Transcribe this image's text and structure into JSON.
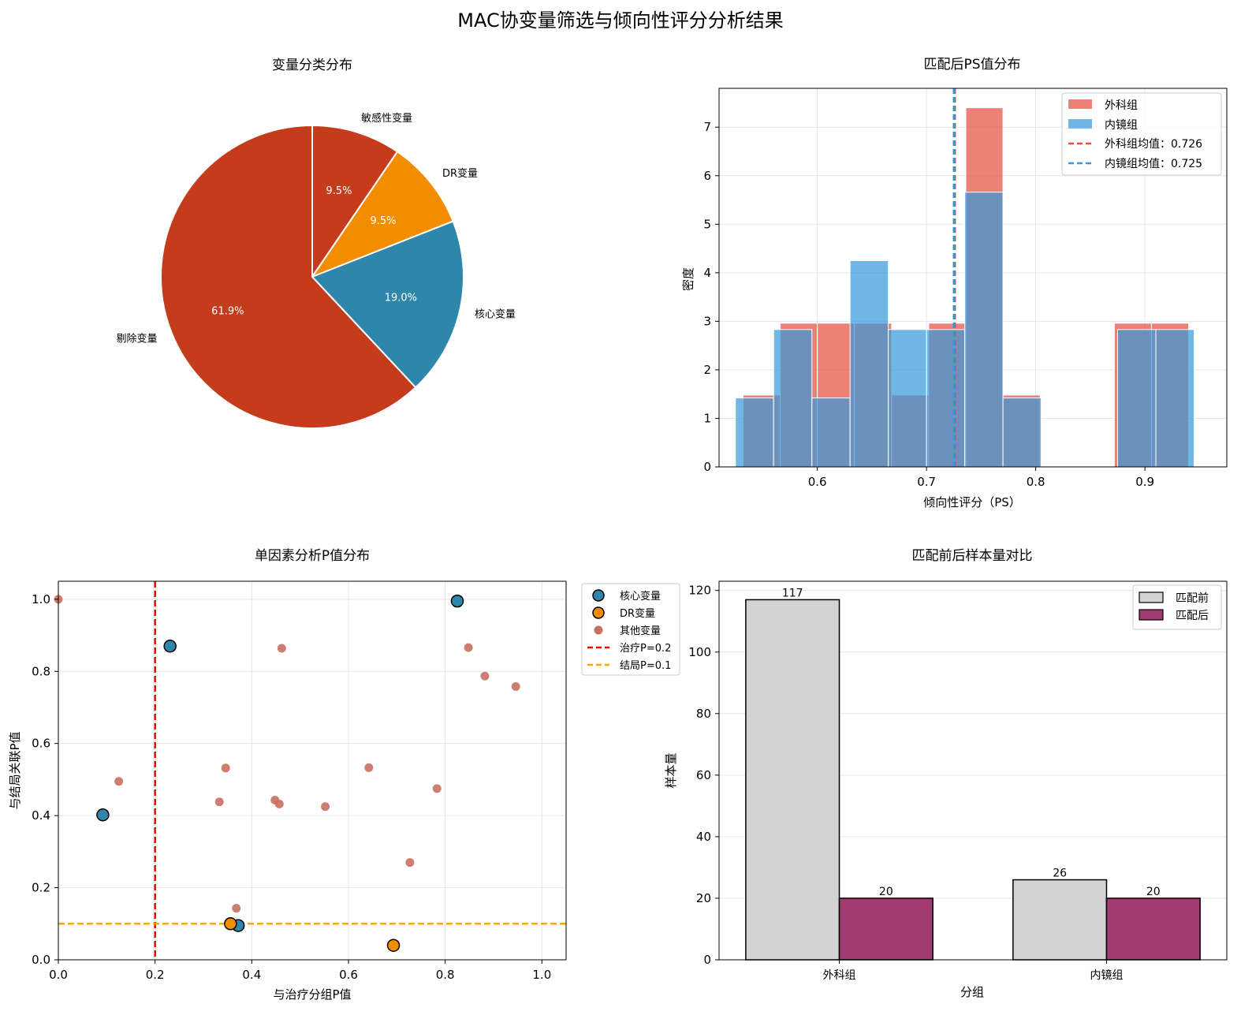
{
  "title": "MAC协变量筛选与倾向性评分分析结果",
  "chart_data": [
    {
      "type": "pie",
      "title": "变量分类分布",
      "labels": [
        "敏感性变量",
        "DR变量",
        "核心变量",
        "剔除变量"
      ],
      "values": [
        9.5,
        9.5,
        19.0,
        61.9
      ],
      "pct_labels": [
        "9.5%",
        "9.5%",
        "19.0%",
        "61.9%"
      ],
      "colors": [
        "#c43c1c",
        "#f28c00",
        "#2e86ab",
        "#c43c1c"
      ]
    },
    {
      "type": "bar",
      "subtype": "histogram",
      "title": "匹配后PS值分布",
      "xlabel": "倾向性评分（PS）",
      "ylabel": "密度",
      "xlim": [
        0.51,
        0.975
      ],
      "ylim": [
        0,
        7.8
      ],
      "xticks": [
        0.6,
        0.7,
        0.8,
        0.9
      ],
      "xtick_labels": [
        "0.6",
        "0.7",
        "0.8",
        "0.9"
      ],
      "yticks": [
        0,
        1,
        2,
        3,
        4,
        5,
        6,
        7
      ],
      "ytick_labels": [
        "0",
        "1",
        "2",
        "3",
        "4",
        "5",
        "6",
        "7"
      ],
      "grid": true,
      "legend_position": "top-right",
      "series": [
        {
          "name": "外科组",
          "color": "#e74c3c",
          "bins": [
            [
              0.532,
              0.566,
              1.48
            ],
            [
              0.566,
              0.6,
              2.96
            ],
            [
              0.6,
              0.634,
              2.96
            ],
            [
              0.634,
              0.668,
              2.96
            ],
            [
              0.668,
              0.702,
              1.48
            ],
            [
              0.702,
              0.736,
              2.96
            ],
            [
              0.736,
              0.77,
              7.4
            ],
            [
              0.77,
              0.804,
              1.48
            ],
            [
              0.804,
              0.838,
              0
            ],
            [
              0.838,
              0.872,
              0
            ],
            [
              0.872,
              0.906,
              2.96
            ],
            [
              0.906,
              0.94,
              2.96
            ]
          ]
        },
        {
          "name": "内镜组",
          "color": "#3498db",
          "bins": [
            [
              0.525,
              0.56,
              1.42
            ],
            [
              0.56,
              0.595,
              2.83
            ],
            [
              0.595,
              0.63,
              1.42
            ],
            [
              0.63,
              0.665,
              4.25
            ],
            [
              0.665,
              0.7,
              2.83
            ],
            [
              0.7,
              0.735,
              2.83
            ],
            [
              0.735,
              0.77,
              5.66
            ],
            [
              0.77,
              0.805,
              1.42
            ],
            [
              0.805,
              0.84,
              0
            ],
            [
              0.84,
              0.875,
              0
            ],
            [
              0.875,
              0.91,
              2.83
            ],
            [
              0.91,
              0.945,
              2.83
            ]
          ]
        }
      ],
      "vlines": [
        {
          "name": "外科组均值：0.726",
          "x": 0.726,
          "color": "#e74c3c"
        },
        {
          "name": "内镜组均值：0.725",
          "x": 0.725,
          "color": "#3498db"
        }
      ]
    },
    {
      "type": "scatter",
      "title": "单因素分析P值分布",
      "xlabel": "与治疗分组P值",
      "ylabel": "与结局关联P值",
      "xlim": [
        0,
        1.05
      ],
      "ylim": [
        0,
        1.05
      ],
      "xticks": [
        0,
        0.2,
        0.4,
        0.6,
        0.8,
        1.0
      ],
      "xtick_labels": [
        "0.0",
        "0.2",
        "0.4",
        "0.6",
        "0.8",
        "1.0"
      ],
      "yticks": [
        0,
        0.2,
        0.4,
        0.6,
        0.8,
        1.0
      ],
      "ytick_labels": [
        "0.0",
        "0.2",
        "0.4",
        "0.6",
        "0.8",
        "1.0"
      ],
      "grid": true,
      "legend_position": "outside-right",
      "series": [
        {
          "name": "核心变量",
          "color": "#2e86ab",
          "points": [
            [
              0.092,
              0.402
            ],
            [
              0.231,
              0.87
            ],
            [
              0.372,
              0.095
            ],
            [
              0.825,
              0.995
            ]
          ]
        },
        {
          "name": "DR变量",
          "color": "#f28c00",
          "points": [
            [
              0.356,
              0.1
            ],
            [
              0.693,
              0.04
            ]
          ]
        },
        {
          "name": "其他变量",
          "color": "#c87060",
          "points": [
            [
              0.0,
              1.0
            ],
            [
              0.125,
              0.495
            ],
            [
              0.333,
              0.438
            ],
            [
              0.346,
              0.532
            ],
            [
              0.368,
              0.143
            ],
            [
              0.448,
              0.443
            ],
            [
              0.457,
              0.432
            ],
            [
              0.462,
              0.864
            ],
            [
              0.552,
              0.425
            ],
            [
              0.642,
              0.533
            ],
            [
              0.727,
              0.27
            ],
            [
              0.783,
              0.475
            ],
            [
              0.848,
              0.866
            ],
            [
              0.882,
              0.787
            ],
            [
              0.946,
              0.758
            ]
          ]
        }
      ],
      "reference_lines": [
        {
          "name": "治疗P=0.2",
          "orientation": "vertical",
          "value": 0.2,
          "color": "#ff0000"
        },
        {
          "name": "结局P=0.1",
          "orientation": "horizontal",
          "value": 0.1,
          "color": "#ffa500"
        }
      ]
    },
    {
      "type": "bar",
      "title": "匹配前后样本量对比",
      "xlabel": "分组",
      "ylabel": "样本量",
      "categories": [
        "外科组",
        "内镜组"
      ],
      "ylim": [
        0,
        123
      ],
      "yticks": [
        0,
        20,
        40,
        60,
        80,
        100,
        120
      ],
      "ytick_labels": [
        "0",
        "20",
        "40",
        "60",
        "80",
        "100",
        "120"
      ],
      "grid": true,
      "legend_position": "top-right",
      "series": [
        {
          "name": "匹配前",
          "color": "#d3d3d3",
          "values": [
            117,
            26
          ]
        },
        {
          "name": "匹配后",
          "color": "#a23b72",
          "values": [
            20,
            20
          ]
        }
      ],
      "value_labels": [
        [
          "117",
          "26"
        ],
        [
          "20",
          "20"
        ]
      ]
    }
  ]
}
